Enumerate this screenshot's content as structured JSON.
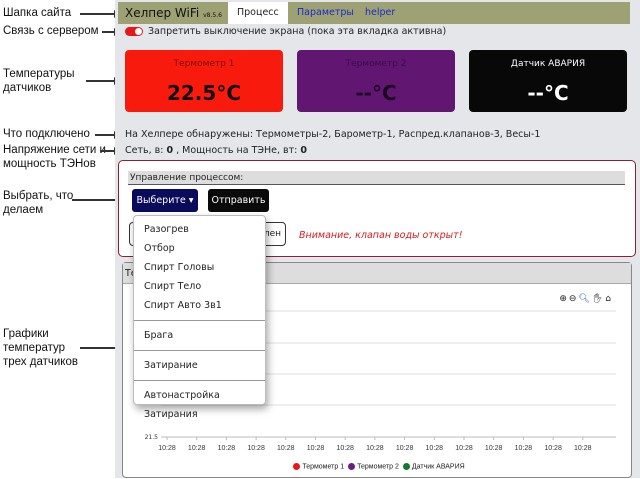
{
  "annotations": {
    "header": "Шапка сайта",
    "server": "Связь с сервером",
    "temps": "Температуры датчиков",
    "connected": "Что подключено",
    "power": "Напряжение сети и мощность ТЭНов",
    "choose": "Выбрать, что делаем",
    "charts": "Графики температур трех датчиков"
  },
  "header": {
    "title": "Хелпер WiFi",
    "version": "v8.5.6",
    "tabs": [
      {
        "label": "Процесс",
        "active": true
      },
      {
        "label": "Параметры"
      },
      {
        "label": "helper"
      }
    ],
    "bg": "#9ea173"
  },
  "screen_toggle": {
    "label": "Запретить выключение экрана (пока эта вкладка активна)",
    "on": true
  },
  "sensors": [
    {
      "name": "Термометр 1",
      "value": "22.5",
      "unit": "°C",
      "color": "#f81a0c"
    },
    {
      "name": "Термометр 2",
      "value": "--",
      "unit": "°C",
      "color": "#611772"
    },
    {
      "name": "Датчик АВАРИЯ",
      "value": "--",
      "unit": "°C",
      "color": "#080808"
    }
  ],
  "detected": "На Хелпере обнаружены: Термометры-2, Барометр-1, Распред.клапанов-3, Весы-1",
  "power": {
    "prefix": "Сеть, в:",
    "volts": "0",
    "mid": ", Мощность на ТЭНе, вт:",
    "watts": "0"
  },
  "control": {
    "title": "Управление процессом:",
    "select_label": "Выберите",
    "send_label": "Отправить",
    "hidden_btn_tail": "лен",
    "warning": "Внимание, клапан воды открыт!"
  },
  "menu": {
    "groups": [
      [
        "Разогрев",
        "Отбор",
        "Спирт Головы",
        "Спирт Тело",
        "Спирт Авто 3в1"
      ],
      [
        "Брага"
      ],
      [
        "Затирание"
      ],
      [
        "Автонастройка Затирания"
      ]
    ]
  },
  "chart_panel": {
    "title_fragment": "Те"
  },
  "chart_data": {
    "type": "line",
    "y_tick_labels": [
      "21.5"
    ],
    "x_tick_labels": [
      "10:28",
      "10:28",
      "10:28",
      "10:28",
      "10:28",
      "10:28",
      "10:28",
      "10:28",
      "10:28",
      "10:28",
      "10:28",
      "10:28",
      "10:28",
      "10:28",
      "10:28"
    ],
    "grid": true,
    "legend_placement": "bottom",
    "series": [
      {
        "name": "Термометр 1",
        "color": "#e81818",
        "values": []
      },
      {
        "name": "Термометр 2",
        "color": "#6a1f80",
        "values": []
      },
      {
        "name": "Датчик АВАРИЯ",
        "color": "#117a2a",
        "values": []
      }
    ]
  }
}
